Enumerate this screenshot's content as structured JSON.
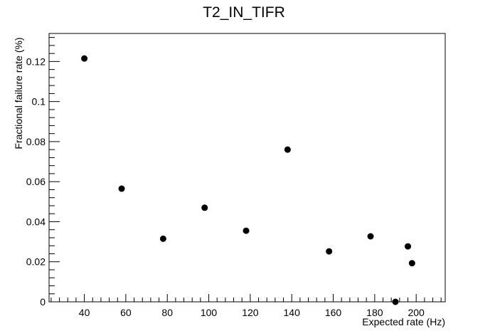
{
  "chart_data": {
    "type": "scatter",
    "title": "T2_IN_TIFR",
    "xlabel": "Expected rate (Hz)",
    "ylabel": "Fractional failure rate (%)",
    "xlim": [
      23,
      214
    ],
    "ylim": [
      0,
      0.134
    ],
    "x_ticks": [
      40,
      60,
      80,
      100,
      120,
      140,
      160,
      180,
      200
    ],
    "x_tick_labels": [
      "40",
      "60",
      "80",
      "100",
      "120",
      "140",
      "160",
      "180",
      "200"
    ],
    "y_ticks": [
      0,
      0.02,
      0.04,
      0.06,
      0.08,
      0.1,
      0.12
    ],
    "y_tick_labels": [
      "0",
      "0.02",
      "0.04",
      "0.06",
      "0.08",
      "0.1",
      "0.12"
    ],
    "grid": false,
    "marker_color": "#000000",
    "points": [
      {
        "x": 40,
        "y": 0.1215
      },
      {
        "x": 58,
        "y": 0.0565
      },
      {
        "x": 78,
        "y": 0.0315
      },
      {
        "x": 98,
        "y": 0.047
      },
      {
        "x": 118,
        "y": 0.0355
      },
      {
        "x": 138,
        "y": 0.076
      },
      {
        "x": 158,
        "y": 0.0252
      },
      {
        "x": 178,
        "y": 0.0327
      },
      {
        "x": 190,
        "y": 0.0
      },
      {
        "x": 196,
        "y": 0.0277
      },
      {
        "x": 198,
        "y": 0.0193
      }
    ]
  }
}
